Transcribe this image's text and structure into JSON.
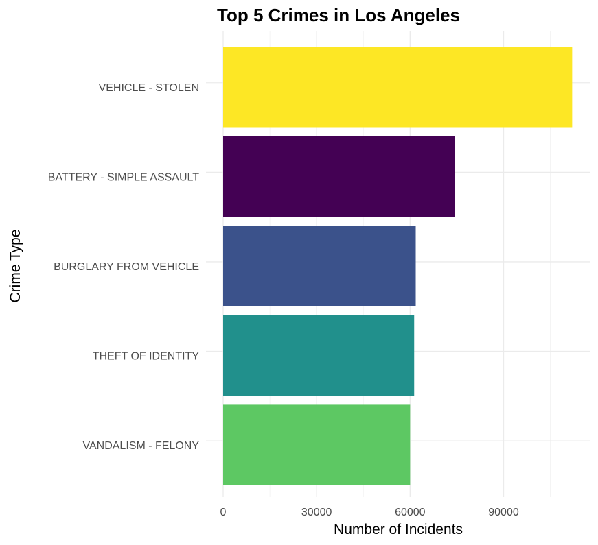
{
  "chart_data": {
    "type": "bar",
    "orientation": "horizontal",
    "title": "Top 5 Crimes in Los Angeles",
    "xlabel": "Number of Incidents",
    "ylabel": "Crime Type",
    "categories": [
      "VEHICLE - STOLEN",
      "BATTERY - SIMPLE ASSAULT",
      "BURGLARY FROM VEHICLE",
      "THEFT OF IDENTITY",
      "VANDALISM - FELONY"
    ],
    "values": [
      112000,
      74300,
      61800,
      61300,
      60000
    ],
    "colors": [
      "#fde725",
      "#440154",
      "#3b528b",
      "#21908c",
      "#5dc863"
    ],
    "x_ticks": [
      0,
      30000,
      60000,
      90000
    ],
    "xlim": [
      0,
      118000
    ],
    "grid": true,
    "legend": "none"
  }
}
